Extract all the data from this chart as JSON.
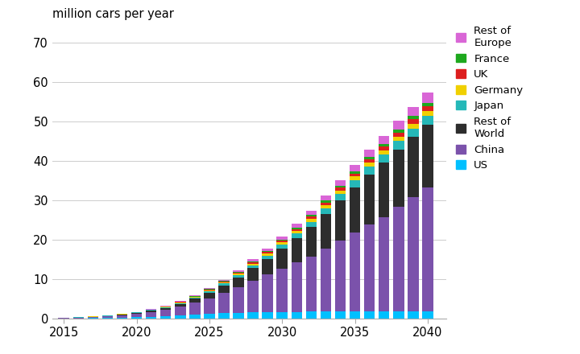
{
  "years": [
    2015,
    2016,
    2017,
    2018,
    2019,
    2020,
    2021,
    2022,
    2023,
    2024,
    2025,
    2026,
    2027,
    2028,
    2029,
    2030,
    2031,
    2032,
    2033,
    2034,
    2035,
    2036,
    2037,
    2038,
    2039,
    2040
  ],
  "series": {
    "US": [
      0.05,
      0.08,
      0.12,
      0.18,
      0.25,
      0.35,
      0.5,
      0.65,
      0.85,
      1.0,
      1.2,
      1.35,
      1.5,
      1.6,
      1.65,
      1.7,
      1.72,
      1.74,
      1.75,
      1.76,
      1.77,
      1.78,
      1.79,
      1.8,
      1.8,
      1.8
    ],
    "China": [
      0.08,
      0.15,
      0.25,
      0.4,
      0.6,
      0.85,
      1.2,
      1.6,
      2.2,
      3.0,
      4.0,
      5.2,
      6.5,
      8.0,
      9.5,
      11.0,
      12.5,
      14.0,
      16.0,
      18.0,
      20.0,
      22.0,
      24.0,
      26.5,
      29.0,
      31.5
    ],
    "Rest of World": [
      0.03,
      0.06,
      0.09,
      0.13,
      0.18,
      0.25,
      0.35,
      0.5,
      0.7,
      1.0,
      1.4,
      1.9,
      2.5,
      3.2,
      4.0,
      5.0,
      6.2,
      7.5,
      8.8,
      10.2,
      11.5,
      12.8,
      13.8,
      14.6,
      15.2,
      15.8
    ],
    "Japan": [
      0.01,
      0.02,
      0.03,
      0.04,
      0.06,
      0.08,
      0.11,
      0.15,
      0.2,
      0.27,
      0.35,
      0.45,
      0.57,
      0.7,
      0.85,
      1.0,
      1.15,
      1.3,
      1.45,
      1.6,
      1.75,
      1.88,
      2.0,
      2.1,
      2.2,
      2.3
    ],
    "Germany": [
      0.01,
      0.015,
      0.02,
      0.03,
      0.04,
      0.06,
      0.08,
      0.11,
      0.14,
      0.18,
      0.23,
      0.29,
      0.36,
      0.43,
      0.5,
      0.58,
      0.66,
      0.74,
      0.82,
      0.9,
      0.98,
      1.05,
      1.12,
      1.18,
      1.24,
      1.3
    ],
    "UK": [
      0.005,
      0.01,
      0.015,
      0.02,
      0.03,
      0.04,
      0.06,
      0.08,
      0.1,
      0.13,
      0.17,
      0.21,
      0.26,
      0.31,
      0.37,
      0.43,
      0.49,
      0.56,
      0.63,
      0.7,
      0.78,
      0.85,
      0.92,
      0.99,
      1.06,
      1.13
    ],
    "France": [
      0.005,
      0.008,
      0.01,
      0.015,
      0.02,
      0.03,
      0.04,
      0.06,
      0.08,
      0.1,
      0.13,
      0.16,
      0.2,
      0.24,
      0.28,
      0.33,
      0.38,
      0.43,
      0.48,
      0.54,
      0.6,
      0.66,
      0.72,
      0.78,
      0.84,
      0.9
    ],
    "Rest of Europe": [
      0.01,
      0.015,
      0.02,
      0.03,
      0.04,
      0.06,
      0.08,
      0.11,
      0.15,
      0.2,
      0.26,
      0.33,
      0.42,
      0.52,
      0.63,
      0.76,
      0.9,
      1.05,
      1.21,
      1.38,
      1.56,
      1.75,
      1.95,
      2.16,
      2.38,
      2.62
    ]
  },
  "colors": {
    "US": "#00c0ff",
    "China": "#7b52ab",
    "Rest of World": "#2d2d2d",
    "Japan": "#25b8b8",
    "Germany": "#f0d000",
    "UK": "#dd1e1e",
    "France": "#1ea81e",
    "Rest of Europe": "#d966d6"
  },
  "legend_order": [
    "Rest of Europe",
    "France",
    "UK",
    "Germany",
    "Japan",
    "Rest of World",
    "China",
    "US"
  ],
  "legend_labels": [
    "Rest of\nEurope",
    "France",
    "UK",
    "Germany",
    "Japan",
    "Rest of\nWorld",
    "China",
    "US"
  ],
  "title": "million cars per year",
  "ylim": [
    0,
    70
  ],
  "yticks": [
    0,
    10,
    20,
    30,
    40,
    50,
    60,
    70
  ],
  "xlim": [
    2014.2,
    2041.3
  ],
  "bar_width": 0.75,
  "background_color": "#ffffff"
}
